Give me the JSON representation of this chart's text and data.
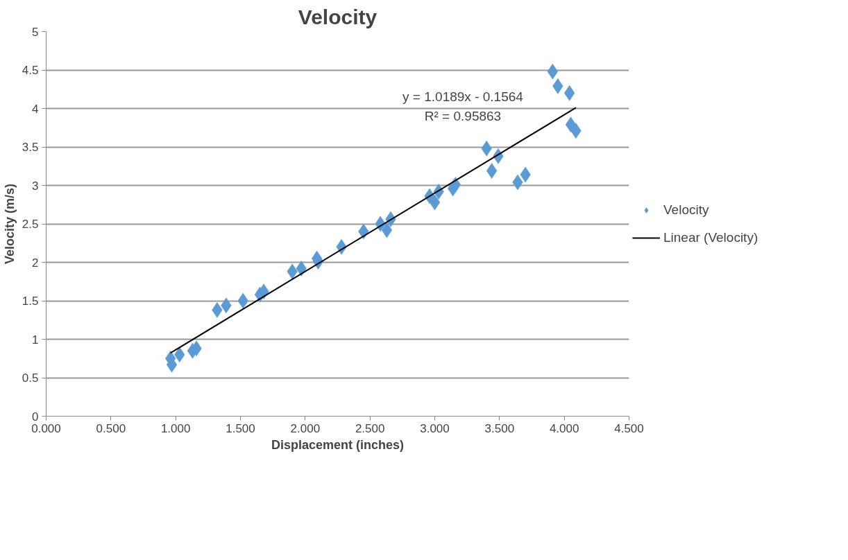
{
  "chart_data": {
    "type": "scatter",
    "title": "Velocity",
    "xlabel": "Displacement (inches)",
    "ylabel": "Velocity (m/s)",
    "series": [
      {
        "name": "Velocity",
        "type": "scatter",
        "marker": "diamond",
        "color": "#5b9bd5",
        "x": [
          0.96,
          0.97,
          1.03,
          1.13,
          1.16,
          1.32,
          1.39,
          1.52,
          1.65,
          1.68,
          1.9,
          1.97,
          2.09,
          2.1,
          2.28,
          2.45,
          2.58,
          2.63,
          2.66,
          2.96,
          3.0,
          3.03,
          3.14,
          3.16,
          3.4,
          3.44,
          3.49,
          3.64,
          3.7,
          3.91,
          3.95,
          4.04,
          4.05,
          4.09
        ],
        "values": [
          0.75,
          0.67,
          0.8,
          0.85,
          0.88,
          1.38,
          1.44,
          1.5,
          1.58,
          1.62,
          1.88,
          1.92,
          2.05,
          2.01,
          2.2,
          2.4,
          2.5,
          2.42,
          2.56,
          2.86,
          2.78,
          2.92,
          2.96,
          3.01,
          3.48,
          3.19,
          3.38,
          3.04,
          3.14,
          4.48,
          4.29,
          4.2,
          3.79,
          3.71
        ]
      },
      {
        "name": "Linear (Velocity)",
        "type": "line",
        "marker": "none",
        "line_style": "solid",
        "color": "#000000",
        "x": [
          0.96,
          4.09
        ],
        "values": [
          0.822,
          4.011
        ]
      }
    ],
    "annotations": [
      "y = 1.0189x - 0.1564",
      "R² = 0.95863"
    ],
    "xlim": [
      0,
      4.5
    ],
    "ylim": [
      0,
      5
    ],
    "xticks": [
      {
        "value": 0,
        "label": "0.000"
      },
      {
        "value": 0.5,
        "label": "0.500"
      },
      {
        "value": 1,
        "label": "1.000"
      },
      {
        "value": 1.5,
        "label": "1.500"
      },
      {
        "value": 2,
        "label": "2.000"
      },
      {
        "value": 2.5,
        "label": "2.500"
      },
      {
        "value": 3,
        "label": "3.000"
      },
      {
        "value": 3.5,
        "label": "3.500"
      },
      {
        "value": 4,
        "label": "4.000"
      },
      {
        "value": 4.5,
        "label": "4.500"
      }
    ],
    "yticks": [
      0,
      0.5,
      1,
      1.5,
      2,
      2.5,
      3,
      3.5,
      4,
      4.5,
      5
    ],
    "grid": "y",
    "legend": "right"
  }
}
